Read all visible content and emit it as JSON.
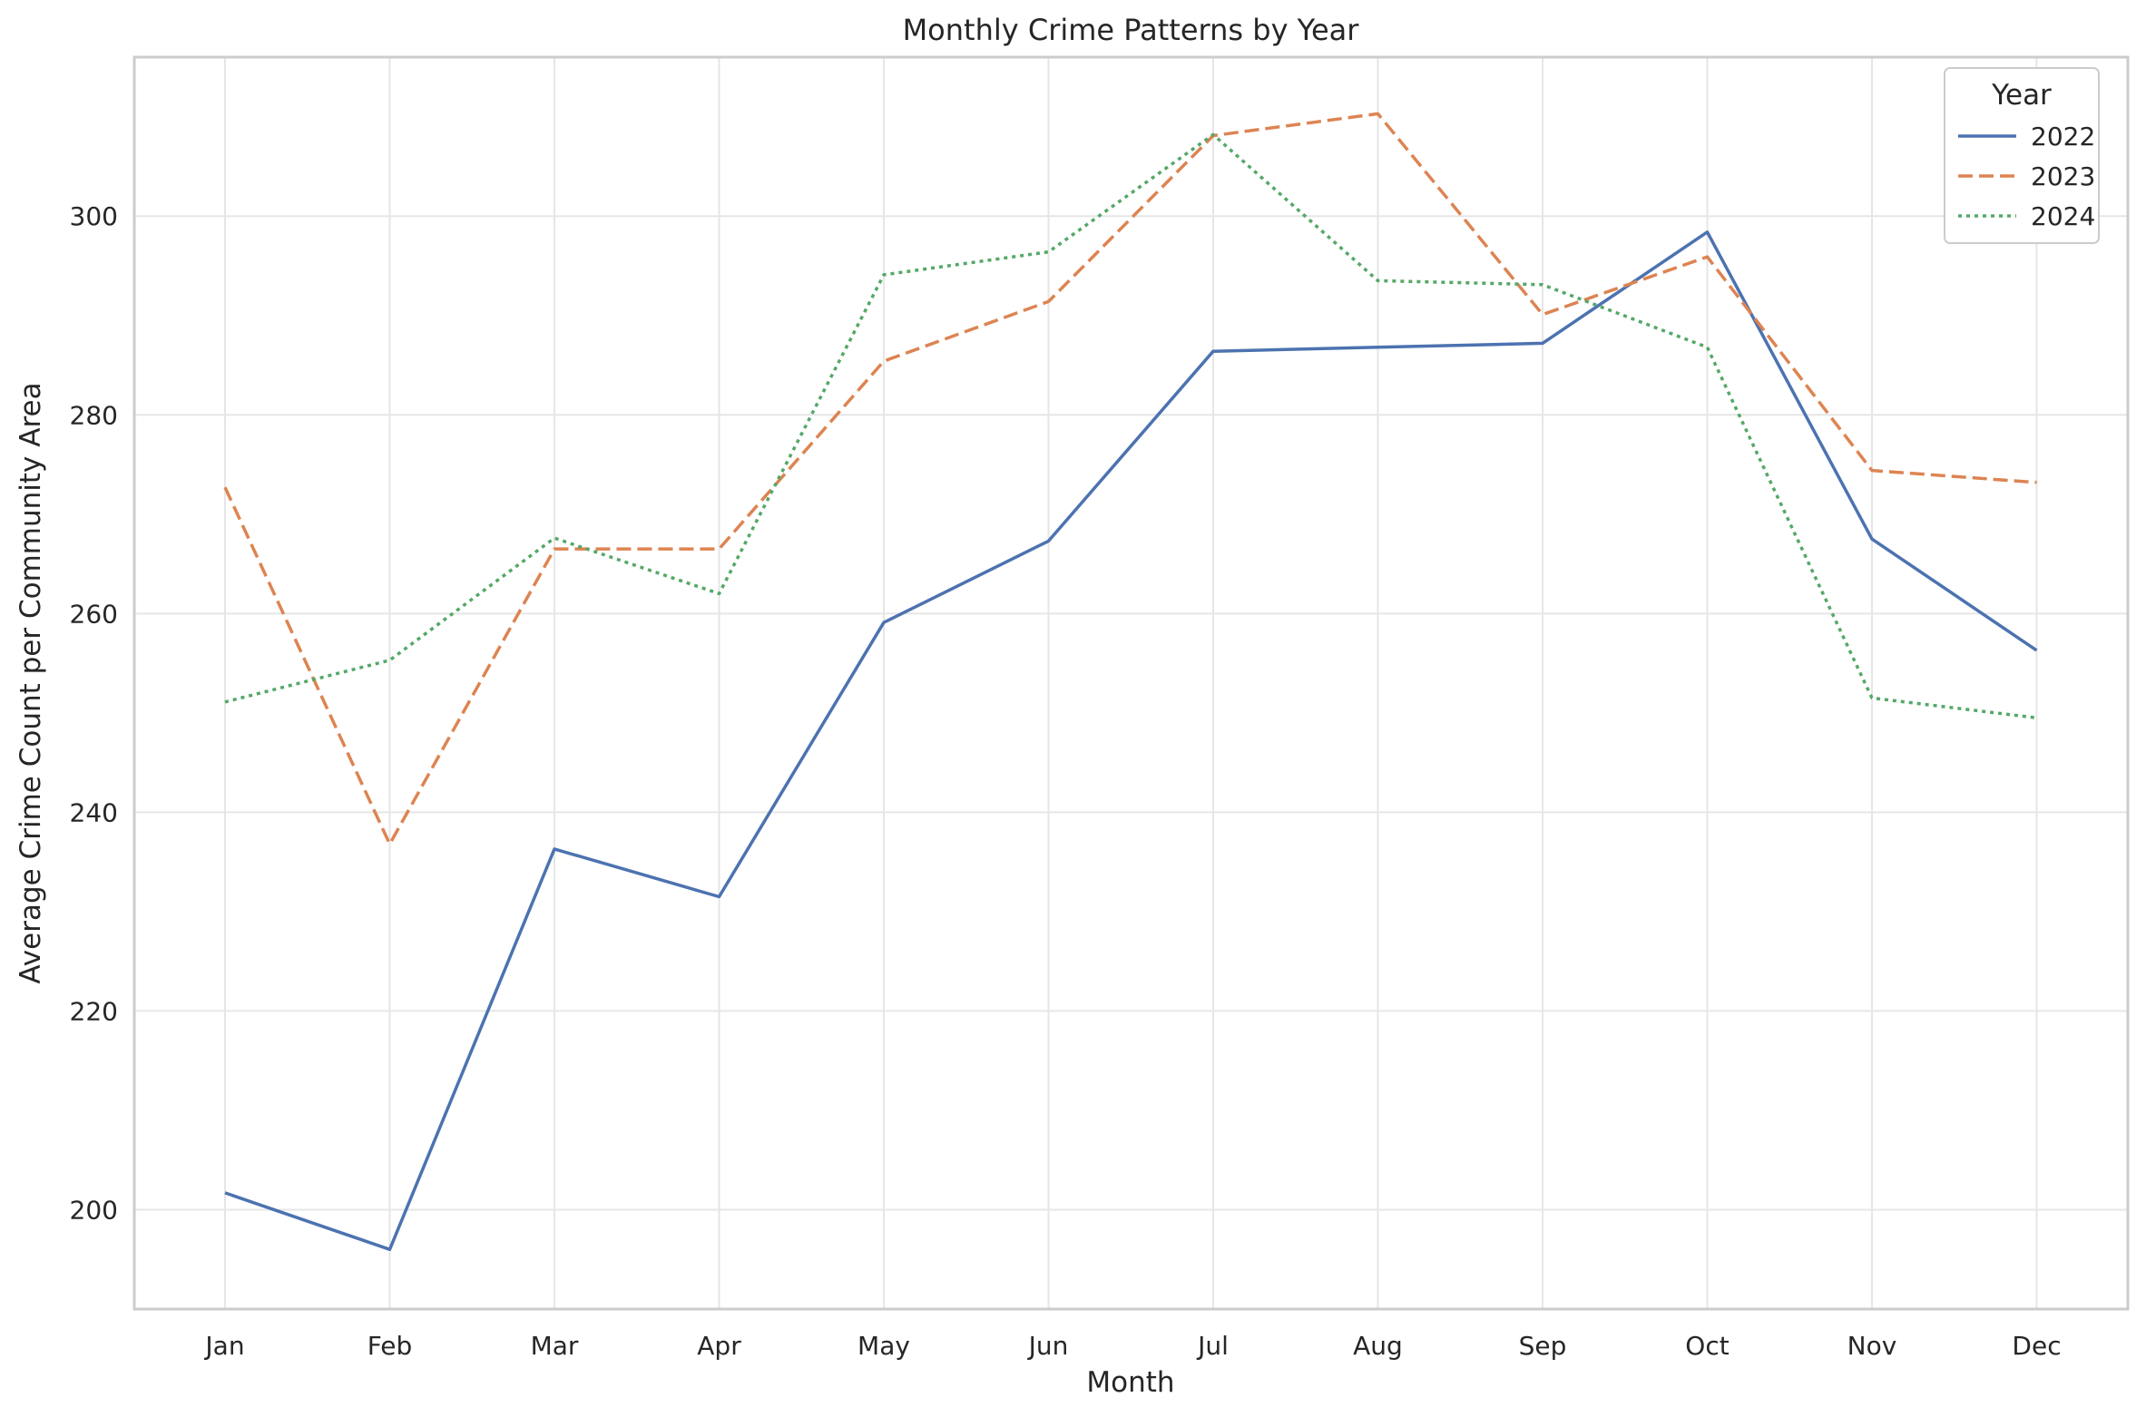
{
  "chart_data": {
    "type": "line",
    "title": "Monthly Crime Patterns by Year",
    "xlabel": "Month",
    "ylabel": "Average Crime Count per Community Area",
    "categories": [
      "Jan",
      "Feb",
      "Mar",
      "Apr",
      "May",
      "Jun",
      "Jul",
      "Aug",
      "Sep",
      "Oct",
      "Nov",
      "Dec"
    ],
    "ylim": [
      190,
      316
    ],
    "yticks": [
      200,
      220,
      240,
      260,
      280,
      300
    ],
    "grid": true,
    "legend": {
      "title": "Year",
      "placement": "top-right"
    },
    "series": [
      {
        "name": "2022",
        "color": "#4c72b0",
        "style": "solid",
        "values": [
          201.7,
          196.0,
          236.3,
          231.5,
          259.1,
          267.3,
          286.4,
          286.8,
          287.2,
          298.4,
          267.5,
          256.3
        ]
      },
      {
        "name": "2023",
        "color": "#dd8452",
        "style": "dashed",
        "values": [
          272.7,
          236.8,
          266.5,
          266.5,
          285.4,
          291.4,
          308.1,
          310.3,
          290.1,
          295.9,
          274.4,
          273.2
        ]
      },
      {
        "name": "2024",
        "color": "#55a868",
        "style": "dotted",
        "values": [
          251.1,
          255.3,
          267.6,
          262.0,
          294.1,
          296.4,
          308.2,
          293.5,
          293.1,
          286.8,
          251.5,
          249.5
        ]
      }
    ]
  }
}
